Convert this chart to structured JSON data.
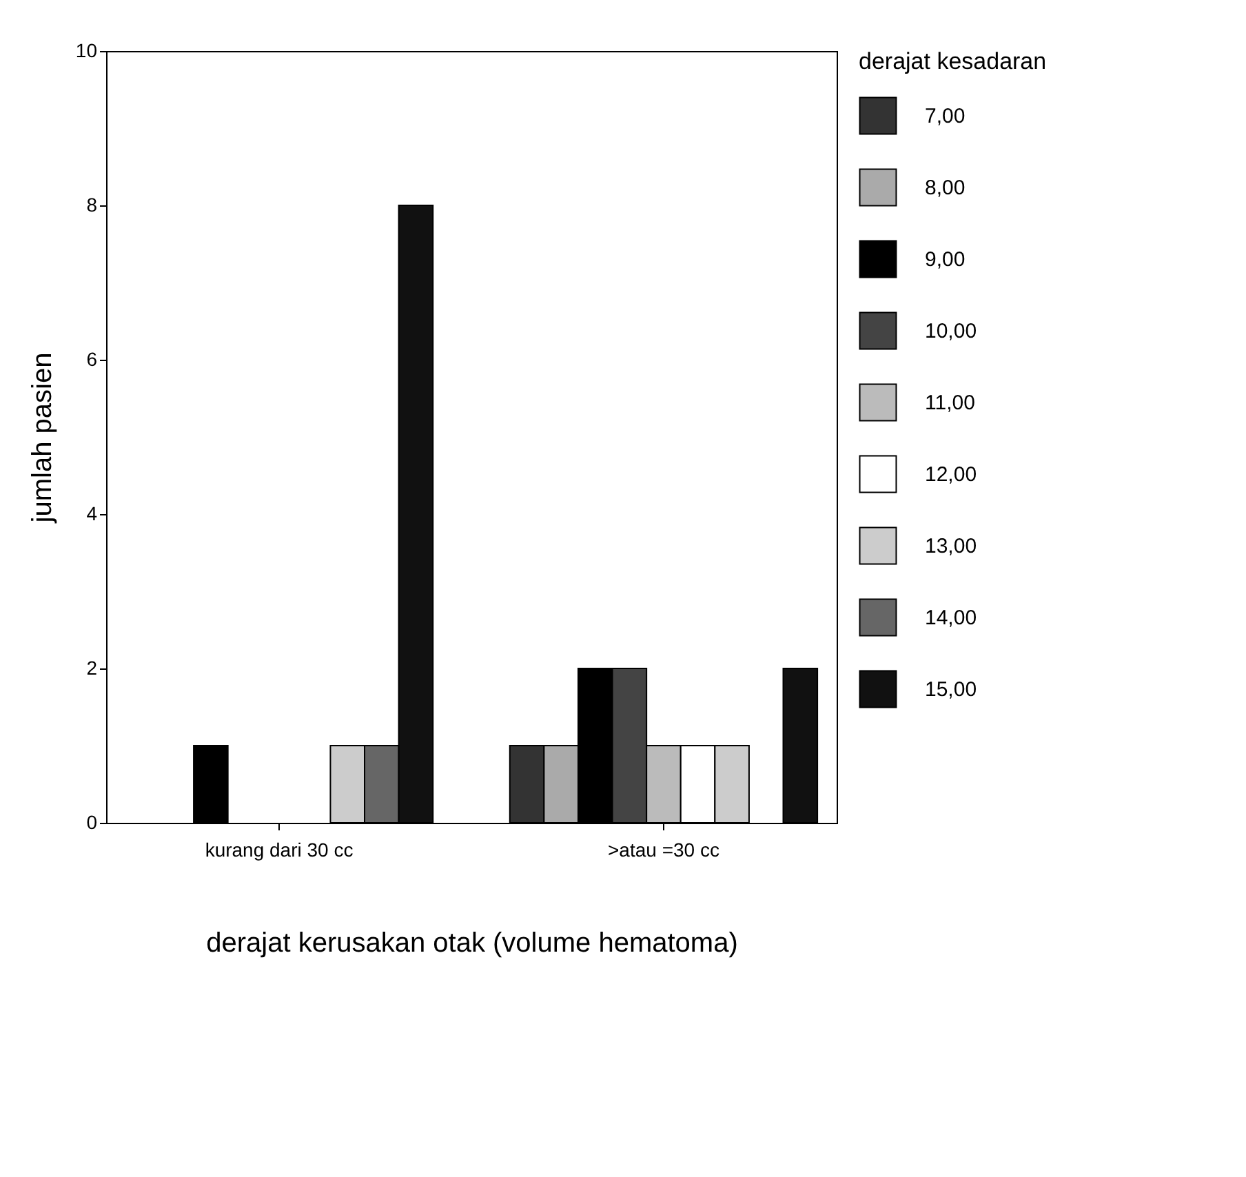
{
  "chart_data": {
    "type": "bar",
    "xlabel": "derajat kerusakan otak (volume hematoma)",
    "ylabel": "jumlah pasien",
    "legend_title": "derajat kesadaran",
    "categories": [
      "kurang dari 30 cc",
      ">atau =30 cc"
    ],
    "series": [
      {
        "name": "7,00",
        "color": "#333333",
        "values": [
          0,
          1
        ]
      },
      {
        "name": "8,00",
        "color": "#aaaaaa",
        "values": [
          0,
          1
        ]
      },
      {
        "name": "9,00",
        "color": "#000000",
        "values": [
          1,
          2
        ]
      },
      {
        "name": "10,00",
        "color": "#444444",
        "values": [
          0,
          2
        ]
      },
      {
        "name": "11,00",
        "color": "#bbbbbb",
        "values": [
          0,
          1
        ]
      },
      {
        "name": "12,00",
        "color": "#ffffff",
        "values": [
          0,
          1
        ]
      },
      {
        "name": "13,00",
        "color": "#cccccc",
        "values": [
          1,
          1
        ]
      },
      {
        "name": "14,00",
        "color": "#666666",
        "values": [
          1,
          0
        ]
      },
      {
        "name": "15,00",
        "color": "#111111",
        "values": [
          8,
          2
        ]
      }
    ],
    "ylim": [
      0,
      10
    ],
    "yticks": [
      0,
      2,
      4,
      6,
      8,
      10
    ],
    "grid": false,
    "legend": "right"
  }
}
